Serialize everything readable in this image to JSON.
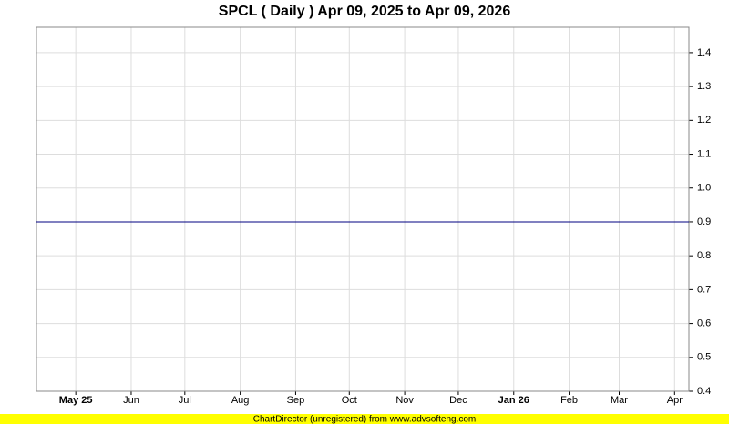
{
  "chart_data": {
    "type": "line",
    "title": "SPCL ( Daily ) Apr 09, 2025 to Apr 09, 2026",
    "x": [
      "2025-04-09",
      "2026-04-09"
    ],
    "series": [
      {
        "color": "#000080",
        "values": [
          0.9,
          0.9
        ]
      }
    ],
    "xlim": [
      "2025-04-09",
      "2026-04-09"
    ],
    "xticks": [
      {
        "value": "2025-05-01",
        "label": "May 25"
      },
      {
        "value": "2025-06-01",
        "label": "Jun"
      },
      {
        "value": "2025-07-01",
        "label": "Jul"
      },
      {
        "value": "2025-08-01",
        "label": "Aug"
      },
      {
        "value": "2025-09-01",
        "label": "Sep"
      },
      {
        "value": "2025-10-01",
        "label": "Oct"
      },
      {
        "value": "2025-11-01",
        "label": "Nov"
      },
      {
        "value": "2025-12-01",
        "label": "Dec"
      },
      {
        "value": "2026-01-01",
        "label": "Jan 26"
      },
      {
        "value": "2026-02-01",
        "label": "Feb"
      },
      {
        "value": "2026-03-01",
        "label": "Mar"
      },
      {
        "value": "2026-04-01",
        "label": "Apr"
      }
    ],
    "ylim": [
      0.4,
      1.475
    ],
    "yticks": [
      0.4,
      0.5,
      0.6,
      0.7,
      0.8,
      0.9,
      {
        "value": 1,
        "label": "1.0"
      },
      1.1,
      1.2,
      1.3,
      1.4
    ],
    "grid": true
  },
  "footer": "ChartDirector (unregistered) from www.advsofteng.com"
}
